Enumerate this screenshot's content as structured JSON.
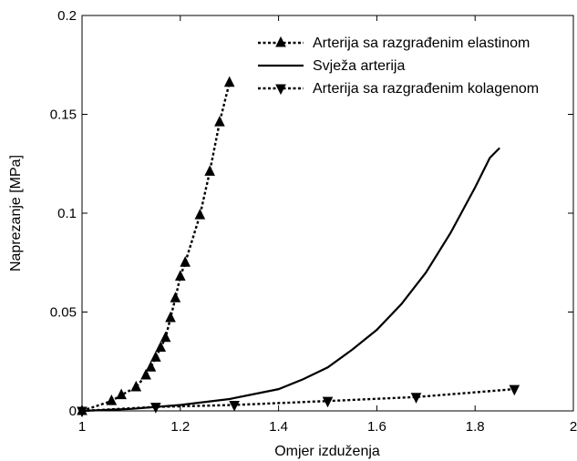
{
  "chart_data": {
    "type": "line",
    "xlabel": "Omjer izduženja",
    "ylabel": "Naprezanje [MPa]",
    "xlim": [
      1,
      2
    ],
    "ylim": [
      0,
      0.2
    ],
    "x_ticks": [
      1,
      1.2,
      1.4,
      1.6,
      1.8,
      2
    ],
    "x_tick_labels": [
      "1",
      "1.2",
      "1.4",
      "1.6",
      "1.8",
      "2"
    ],
    "y_ticks": [
      0,
      0.05,
      0.1,
      0.15,
      0.2
    ],
    "y_tick_labels": [
      "0",
      "0.05",
      "0.1",
      "0.15",
      "0.2"
    ],
    "grid": false,
    "legend_position": "top-right",
    "series": [
      {
        "name": "Arterija sa razgrađenim elastinom",
        "line_style": "dotted",
        "marker": "triangle-up",
        "color": "#000000",
        "x": [
          1.0,
          1.06,
          1.08,
          1.11,
          1.13,
          1.14,
          1.15,
          1.16,
          1.17,
          1.18,
          1.19,
          1.2,
          1.21,
          1.24,
          1.26,
          1.28,
          1.3
        ],
        "y": [
          0.0,
          0.005,
          0.008,
          0.012,
          0.018,
          0.022,
          0.027,
          0.032,
          0.037,
          0.047,
          0.057,
          0.068,
          0.075,
          0.099,
          0.121,
          0.146,
          0.166
        ]
      },
      {
        "name": "Svježa arterija",
        "line_style": "solid",
        "marker": "none",
        "color": "#000000",
        "x": [
          1.0,
          1.1,
          1.2,
          1.3,
          1.4,
          1.45,
          1.5,
          1.55,
          1.6,
          1.65,
          1.7,
          1.75,
          1.8,
          1.83,
          1.85
        ],
        "y": [
          0.0,
          0.001,
          0.003,
          0.006,
          0.011,
          0.016,
          0.022,
          0.031,
          0.041,
          0.054,
          0.07,
          0.09,
          0.113,
          0.128,
          0.133
        ]
      },
      {
        "name": "Arterija sa razgrađenim kolagenom",
        "line_style": "dotted",
        "marker": "triangle-down",
        "color": "#000000",
        "x": [
          1.0,
          1.15,
          1.31,
          1.5,
          1.68,
          1.88
        ],
        "y": [
          0.0,
          0.002,
          0.003,
          0.005,
          0.007,
          0.011
        ]
      }
    ]
  }
}
